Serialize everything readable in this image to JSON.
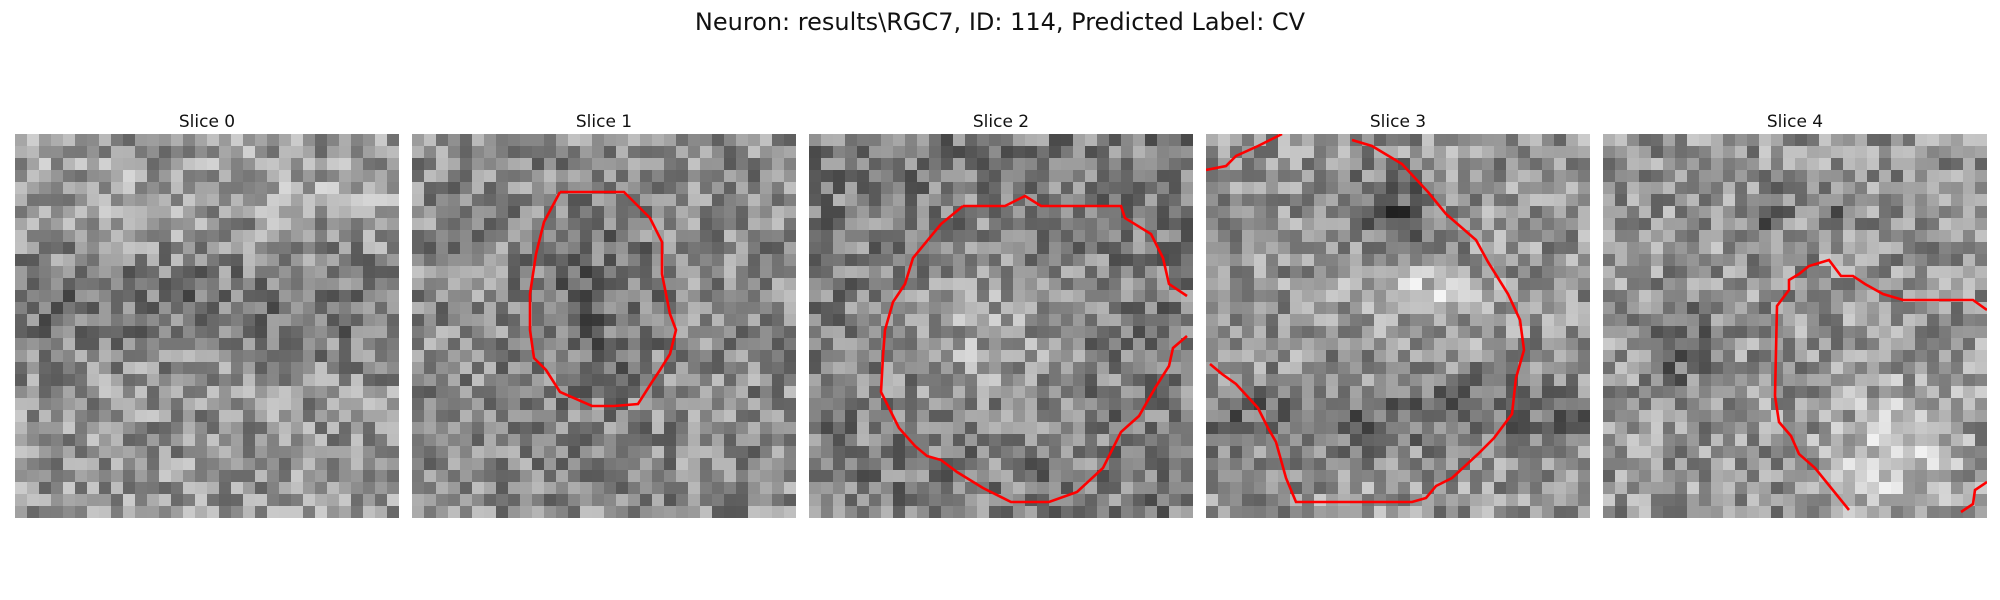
{
  "figure": {
    "title": "Neuron: results\\RGC7, ID: 114, Predicted Label: CV"
  },
  "slices": [
    {
      "label": "Slice 0"
    },
    {
      "label": "Slice 1"
    },
    {
      "label": "Slice 2"
    },
    {
      "label": "Slice 3"
    },
    {
      "label": "Slice 4"
    }
  ],
  "colors": {
    "contour": "#ff0000",
    "background": "#ffffff"
  }
}
